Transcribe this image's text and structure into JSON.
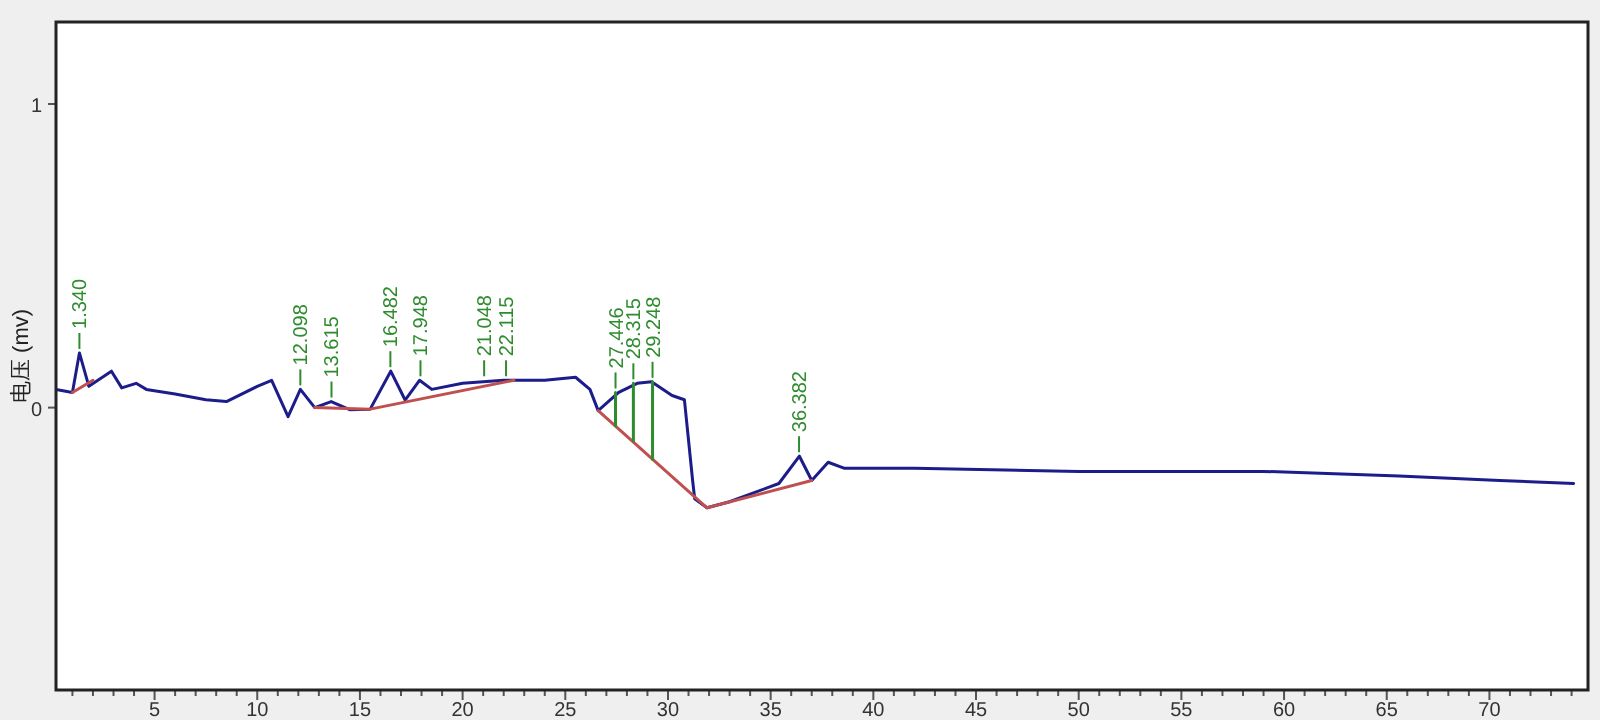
{
  "chart_data": {
    "type": "line",
    "ylabel": "电压 (mv)",
    "xlim": [
      0.2,
      74.8
    ],
    "ylim": [
      -0.93,
      1.27
    ],
    "xticks": [
      {
        "value": 1,
        "label": null
      },
      {
        "value": 2,
        "label": null
      },
      {
        "value": 3,
        "label": null
      },
      {
        "value": 4,
        "label": null
      },
      5,
      {
        "value": 6,
        "label": null
      },
      {
        "value": 7,
        "label": null
      },
      {
        "value": 8,
        "label": null
      },
      {
        "value": 9,
        "label": null
      },
      10,
      {
        "value": 11,
        "label": null
      },
      {
        "value": 12,
        "label": null
      },
      {
        "value": 13,
        "label": null
      },
      {
        "value": 14,
        "label": null
      },
      15,
      {
        "value": 16,
        "label": null
      },
      {
        "value": 17,
        "label": null
      },
      {
        "value": 18,
        "label": null
      },
      {
        "value": 19,
        "label": null
      },
      20,
      {
        "value": 21,
        "label": null
      },
      {
        "value": 22,
        "label": null
      },
      {
        "value": 23,
        "label": null
      },
      {
        "value": 24,
        "label": null
      },
      25,
      {
        "value": 26,
        "label": null
      },
      {
        "value": 27,
        "label": null
      },
      {
        "value": 28,
        "label": null
      },
      {
        "value": 29,
        "label": null
      },
      30,
      {
        "value": 31,
        "label": null
      },
      {
        "value": 32,
        "label": null
      },
      {
        "value": 33,
        "label": null
      },
      {
        "value": 34,
        "label": null
      },
      35,
      {
        "value": 36,
        "label": null
      },
      {
        "value": 37,
        "label": null
      },
      {
        "value": 38,
        "label": null
      },
      {
        "value": 39,
        "label": null
      },
      40,
      {
        "value": 41,
        "label": null
      },
      {
        "value": 42,
        "label": null
      },
      {
        "value": 43,
        "label": null
      },
      {
        "value": 44,
        "label": null
      },
      45,
      {
        "value": 46,
        "label": null
      },
      {
        "value": 47,
        "label": null
      },
      {
        "value": 48,
        "label": null
      },
      {
        "value": 49,
        "label": null
      },
      50,
      {
        "value": 51,
        "label": null
      },
      {
        "value": 52,
        "label": null
      },
      {
        "value": 53,
        "label": null
      },
      {
        "value": 54,
        "label": null
      },
      55,
      {
        "value": 56,
        "label": null
      },
      {
        "value": 57,
        "label": null
      },
      {
        "value": 58,
        "label": null
      },
      {
        "value": 59,
        "label": null
      },
      60,
      {
        "value": 61,
        "label": null
      },
      {
        "value": 62,
        "label": null
      },
      {
        "value": 63,
        "label": null
      },
      {
        "value": 64,
        "label": null
      },
      65,
      {
        "value": 66,
        "label": null
      },
      {
        "value": 67,
        "label": null
      },
      {
        "value": 68,
        "label": null
      },
      {
        "value": 69,
        "label": null
      },
      70,
      {
        "value": 71,
        "label": null
      },
      {
        "value": 72,
        "label": null
      },
      {
        "value": 73,
        "label": null
      },
      {
        "value": 74,
        "label": null
      }
    ],
    "yticks": [
      0,
      1
    ],
    "series": [
      {
        "color": "#1c1c8a",
        "x": [
          0.2,
          1.0,
          1.34,
          1.8,
          2.9,
          3.4,
          4.1,
          4.6,
          6,
          7.5,
          8.5,
          10,
          10.7,
          11.5,
          12.1,
          12.8,
          13.6,
          14.5,
          15.5,
          16.5,
          17.2,
          17.9,
          18.5,
          20,
          22,
          24,
          25.5,
          26.2,
          26.6,
          27.6,
          28.5,
          29.2,
          30.2,
          30.8,
          31.2,
          31.3,
          31.9,
          33,
          35.4,
          36.4,
          37.0,
          37.8,
          38.6,
          42,
          50,
          59,
          65.6,
          70.5,
          74.1
        ],
        "values": [
          0.06,
          0.05,
          0.18,
          0.07,
          0.12,
          0.065,
          0.08,
          0.06,
          0.045,
          0.026,
          0.02,
          0.07,
          0.09,
          -0.03,
          0.06,
          0,
          0.02,
          -0.007,
          -0.005,
          0.12,
          0.025,
          0.09,
          0.06,
          0.08,
          0.09,
          0.09,
          0.1,
          0.06,
          -0.01,
          0.05,
          0.08,
          0.085,
          0.04,
          0.026,
          -0.24,
          -0.3,
          -0.33,
          -0.31,
          -0.25,
          -0.16,
          -0.24,
          -0.18,
          -0.2,
          -0.2,
          -0.21,
          -0.21,
          -0.225,
          -0.24,
          -0.25
        ]
      },
      {
        "color": "#c05050",
        "x": [
          1.0,
          2.0,
          null,
          12.8,
          15.5,
          22.5,
          null,
          26.6,
          31.9,
          37.0
        ],
        "values": [
          0.05,
          0.09,
          null,
          0.0,
          -0.005,
          0.09,
          null,
          -0.01,
          -0.33,
          -0.24
        ]
      },
      {
        "color": "#2e8b2e",
        "x": [
          27.446,
          27.446,
          null,
          28.315,
          28.315,
          null,
          29.248,
          29.248
        ],
        "values": [
          0.05,
          -0.06,
          null,
          0.08,
          -0.11,
          null,
          0.085,
          -0.17
        ]
      }
    ],
    "annotations": [
      {
        "text": "1.340",
        "x": 1.34,
        "y": 0.18
      },
      {
        "text": "12.098",
        "x": 12.098,
        "y": 0.06
      },
      {
        "text": "13.615",
        "x": 13.615,
        "y": 0.02
      },
      {
        "text": "16.482",
        "x": 16.482,
        "y": 0.12
      },
      {
        "text": "17.948",
        "x": 17.948,
        "y": 0.09
      },
      {
        "text": "21.048",
        "x": 21.048,
        "y": 0.09
      },
      {
        "text": "22.115",
        "x": 22.115,
        "y": 0.09
      },
      {
        "text": "27.446",
        "x": 27.446,
        "y": 0.05
      },
      {
        "text": "28.315",
        "x": 28.315,
        "y": 0.08
      },
      {
        "text": "29.248",
        "x": 29.248,
        "y": 0.085
      },
      {
        "text": "36.382",
        "x": 36.382,
        "y": -0.16
      }
    ]
  }
}
